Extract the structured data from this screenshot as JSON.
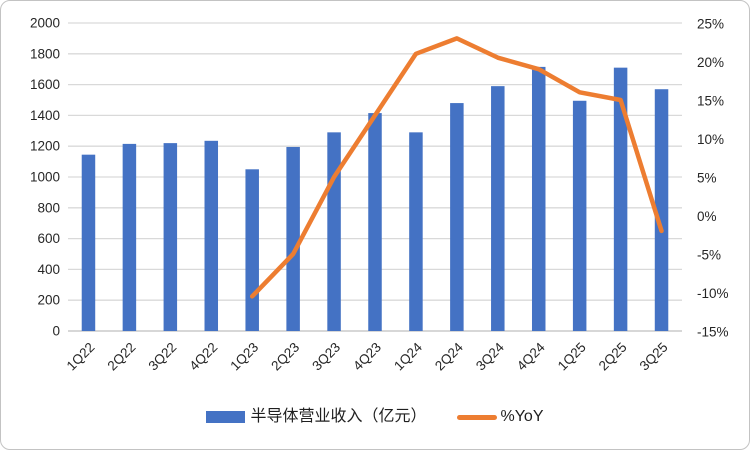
{
  "chart_data": {
    "type": "bar",
    "subtype": "combo-bar-line",
    "categories": [
      "1Q22",
      "2Q22",
      "3Q22",
      "4Q22",
      "1Q23",
      "2Q23",
      "3Q23",
      "4Q23",
      "1Q24",
      "2Q24",
      "3Q24",
      "4Q24",
      "1Q25",
      "2Q25",
      "3Q25"
    ],
    "series": [
      {
        "name": "半导体营业收入（亿元）",
        "type": "bar",
        "axis": "left",
        "color": "#4472C4",
        "values": [
          1145,
          1215,
          1220,
          1235,
          1050,
          1195,
          1290,
          1415,
          1290,
          1480,
          1590,
          1715,
          1495,
          1710,
          1570
        ]
      },
      {
        "name": "%YoY",
        "type": "line",
        "axis": "right",
        "color": "#ED7D31",
        "values": [
          null,
          null,
          null,
          null,
          -10.5,
          -5,
          5,
          13,
          21,
          23,
          20.5,
          19,
          16,
          15,
          -2
        ]
      }
    ],
    "title": "",
    "xlabel": "",
    "ylabel_left": "",
    "ylabel_right": "",
    "left_axis": {
      "min": 0,
      "max": 2000,
      "step": 200,
      "ticks": [
        "2000",
        "1800",
        "1600",
        "1400",
        "1200",
        "1000",
        "800",
        "600",
        "400",
        "200",
        "0"
      ]
    },
    "right_axis": {
      "min": -15,
      "max": 25,
      "step": 5,
      "ticks": [
        "25%",
        "20%",
        "15%",
        "10%",
        "5%",
        "0%",
        "-5%",
        "-10%",
        "-15%"
      ]
    },
    "grid": true,
    "legend_position": "bottom"
  },
  "legend": {
    "bar_label": "半导体营业收入（亿元）",
    "line_label": "%YoY"
  },
  "colors": {
    "bar": "#4472C4",
    "line": "#ED7D31",
    "gridline": "#D9D9D9",
    "axis_line": "#BFBFBF",
    "tick_text": "#262626",
    "card_border": "#C3C3C3",
    "background": "#FFFFFF"
  }
}
